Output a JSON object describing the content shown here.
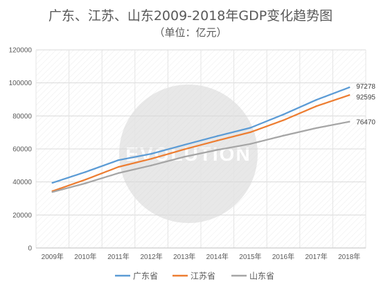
{
  "title": "广东、江苏、山东2009-2018年GDP变化趋势图",
  "subtitle": "（单位：亿元）",
  "watermark": {
    "text": "EVOLUTION",
    "color": "#d9d9d9"
  },
  "chart_data": {
    "type": "line",
    "title": "广东、江苏、山东2009-2018年GDP变化趋势图",
    "subtitle": "（单位：亿元）",
    "categories": [
      "2009年",
      "2010年",
      "2011年",
      "2012年",
      "2013年",
      "2014年",
      "2015年",
      "2016年",
      "2017年",
      "2018年"
    ],
    "series": [
      {
        "name": "广东省",
        "color": "#5b9bd5",
        "values": [
          39483,
          46013,
          53210,
          57068,
          62474,
          67810,
          72813,
          80855,
          89705,
          97278
        ],
        "end_label": "97278"
      },
      {
        "name": "江苏省",
        "color": "#ed7d31",
        "values": [
          34457,
          41425,
          49110,
          54058,
          59753,
          65088,
          70116,
          77388,
          85870,
          92595
        ],
        "end_label": "92595"
      },
      {
        "name": "山东省",
        "color": "#a5a5a5",
        "values": [
          33897,
          39170,
          45362,
          50013,
          55230,
          59427,
          63002,
          68024,
          72634,
          76470
        ],
        "end_label": "76470"
      }
    ],
    "xlabel": "",
    "ylabel": "",
    "ylim": [
      0,
      120000
    ],
    "yticks": [
      "0",
      "20000",
      "40000",
      "60000",
      "80000",
      "100000",
      "120000"
    ],
    "grid": true,
    "legend_position": "bottom"
  }
}
